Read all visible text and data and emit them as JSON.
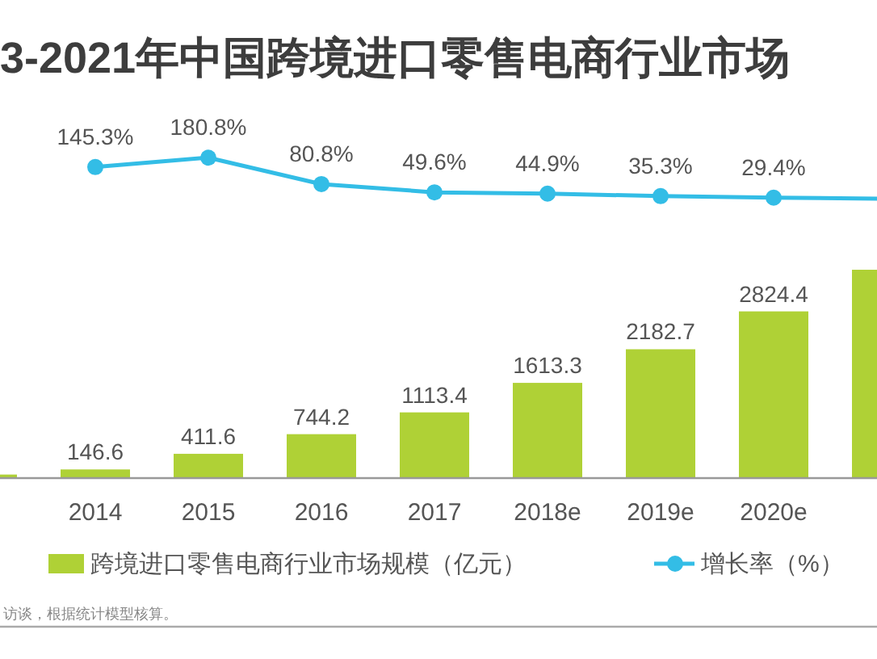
{
  "chart_data": [
    {
      "type": "bar",
      "categories": [
        null,
        "2014",
        "2015",
        "2016",
        "2017",
        "2018e",
        "2019e",
        "2020e",
        null
      ],
      "series": [
        {
          "name": "跨境进口零售电商行业市场规模（亿元）",
          "color": "#afd136",
          "values": [
            60,
            146.6,
            411.6,
            744.2,
            1113.4,
            1613.3,
            2182.7,
            2824.4,
            3530
          ],
          "value_labels": [
            null,
            "146.6",
            "411.6",
            "744.2",
            "1113.4",
            "1613.3",
            "2182.7",
            "2824.4",
            null
          ]
        }
      ],
      "legend": "bottom",
      "annotations": [
        "访谈，根据统计模型核算。"
      ]
    },
    {
      "type": "line",
      "title": "3-2021年中国跨境进口零售电商行业市场",
      "categories": [
        null,
        null,
        null,
        null,
        null,
        null,
        null,
        null,
        null
      ],
      "series": [
        {
          "name": "增长率（%）",
          "color": "#33bde6",
          "values": [
            null,
            145.3,
            180.8,
            80.8,
            49.6,
            44.9,
            35.3,
            29.4,
            25.6
          ],
          "value_labels": [
            null,
            "145.3%",
            "180.8%",
            "80.8%",
            "49.6%",
            "44.9%",
            "35.3%",
            "29.4%",
            null
          ]
        }
      ],
      "marker": "circle",
      "legend": "bottom"
    }
  ]
}
